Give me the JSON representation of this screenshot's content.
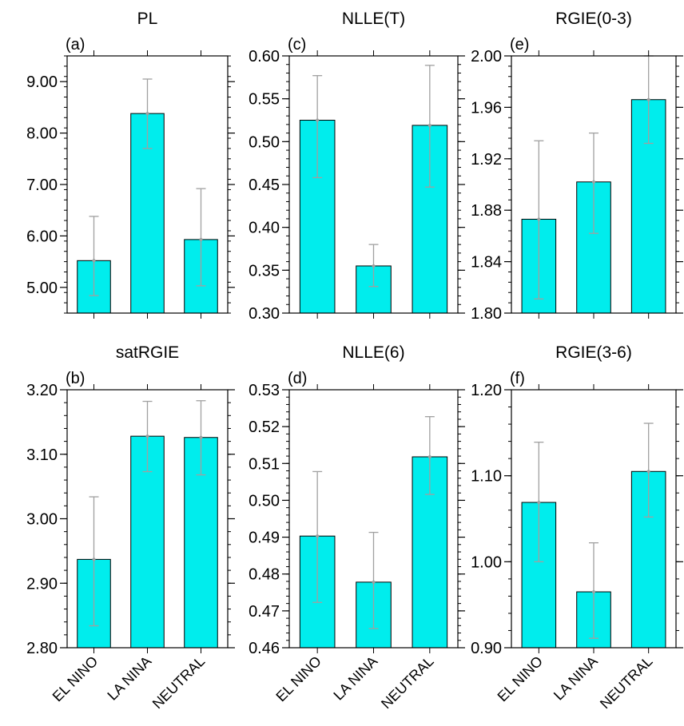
{
  "chart_data": [
    {
      "panel": "(a)",
      "title": "PL",
      "type": "bar",
      "categories": [
        "EL NINO",
        "LA NINA",
        "NEUTRAL"
      ],
      "values": [
        5.52,
        8.38,
        5.93
      ],
      "errors": [
        [
          4.84,
          6.38
        ],
        [
          7.7,
          9.05
        ],
        [
          5.03,
          6.92
        ]
      ],
      "ylim": [
        4.5,
        9.5
      ],
      "yticks": [
        5.0,
        6.0,
        7.0,
        8.0,
        9.0
      ],
      "ytick_labels": [
        "5.00",
        "6.00",
        "7.00",
        "8.00",
        "9.00"
      ],
      "yaxis_side": "left"
    },
    {
      "panel": "(c)",
      "title": "NLLE(T)",
      "type": "bar",
      "categories": [
        "EL NINO",
        "LA NINA",
        "NEUTRAL"
      ],
      "values": [
        0.525,
        0.355,
        0.519
      ],
      "errors": [
        [
          0.458,
          0.577
        ],
        [
          0.331,
          0.38
        ],
        [
          0.447,
          0.589
        ]
      ],
      "ylim": [
        0.3,
        0.6
      ],
      "yticks": [
        0.3,
        0.35,
        0.4,
        0.45,
        0.5,
        0.55,
        0.6
      ],
      "ytick_labels": [
        "0.30",
        "0.35",
        "0.40",
        "0.45",
        "0.50",
        "0.55",
        "0.60"
      ],
      "yaxis_side": "left"
    },
    {
      "panel": "(e)",
      "title": "RGIE(0-3)",
      "type": "bar",
      "categories": [
        "EL NINO",
        "LA NINA",
        "NEUTRAL"
      ],
      "values": [
        1.873,
        1.902,
        1.966
      ],
      "errors": [
        [
          1.811,
          1.934
        ],
        [
          1.862,
          1.94
        ],
        [
          1.932,
          2.0
        ]
      ],
      "ylim": [
        1.8,
        2.0
      ],
      "yticks": [
        1.8,
        1.84,
        1.88,
        1.92,
        1.96,
        2.0
      ],
      "ytick_labels": [
        "1.80",
        "1.84",
        "1.88",
        "1.92",
        "1.96",
        "2.00"
      ],
      "yaxis_side": "left"
    },
    {
      "panel": "(b)",
      "title": "satRGIE",
      "type": "bar",
      "categories": [
        "EL NINO",
        "LA NINA",
        "NEUTRAL"
      ],
      "values": [
        2.937,
        3.128,
        3.126
      ],
      "errors": [
        [
          2.834,
          3.034
        ],
        [
          3.073,
          3.182
        ],
        [
          3.068,
          3.183
        ]
      ],
      "ylim": [
        2.8,
        3.2
      ],
      "yticks": [
        2.8,
        2.9,
        3.0,
        3.1,
        3.2
      ],
      "ytick_labels": [
        "2.80",
        "2.90",
        "3.00",
        "3.10",
        "3.20"
      ],
      "yaxis_side": "left"
    },
    {
      "panel": "(d)",
      "title": "NLLE(6)",
      "type": "bar",
      "categories": [
        "EL NINO",
        "LA NINA",
        "NEUTRAL"
      ],
      "values": [
        0.4903,
        0.4778,
        0.5118
      ],
      "errors": [
        [
          0.4723,
          0.5078
        ],
        [
          0.4652,
          0.4913
        ],
        [
          0.5016,
          0.5227
        ]
      ],
      "ylim": [
        0.46,
        0.53
      ],
      "yticks": [
        0.46,
        0.47,
        0.48,
        0.49,
        0.5,
        0.51,
        0.52,
        0.53
      ],
      "ytick_labels": [
        "0.46",
        "0.47",
        "0.48",
        "0.49",
        "0.50",
        "0.51",
        "0.52",
        "0.53"
      ],
      "yaxis_side": "left"
    },
    {
      "panel": "(f)",
      "title": "RGIE(3-6)",
      "type": "bar",
      "categories": [
        "EL NINO",
        "LA NINA",
        "NEUTRAL"
      ],
      "values": [
        1.069,
        0.965,
        1.105
      ],
      "errors": [
        [
          1.0,
          1.139
        ],
        [
          0.911,
          1.022
        ],
        [
          1.052,
          1.161
        ]
      ],
      "ylim": [
        0.9,
        1.2
      ],
      "yticks": [
        0.9,
        1.0,
        1.1,
        1.2
      ],
      "ytick_labels": [
        "0.90",
        "1.00",
        "1.10",
        "1.20"
      ],
      "yaxis_side": "left"
    }
  ],
  "colors": {
    "bar_fill": "#00eded",
    "bar_stroke": "#000000",
    "error_bar": "#a0a0a0",
    "axis": "#000000"
  }
}
